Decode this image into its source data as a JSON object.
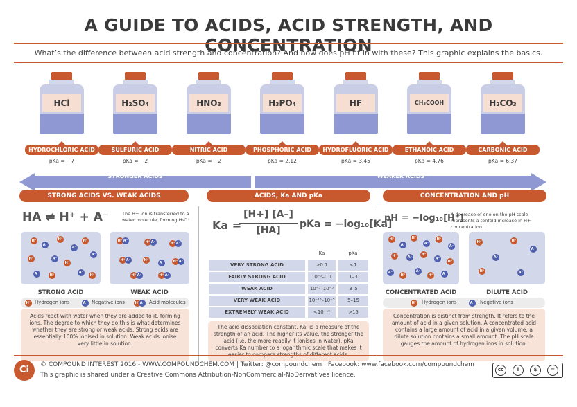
{
  "header": {
    "title": "A GUIDE TO ACIDS, ACID STRENGTH, AND CONCENTRATION",
    "subtitle": "What’s the difference between acid strength and concentration? And how does pH fit in with these? This graphic explains the basics."
  },
  "acids": [
    {
      "formula": "HCl",
      "name": "HYDROCHLORIC ACID",
      "pka": "pKa = −7"
    },
    {
      "formula": "H₂SO₄",
      "name": "SULFURIC ACID",
      "pka": "pKa = −2"
    },
    {
      "formula": "HNO₃",
      "name": "NITRIC ACID",
      "pka": "pKa = −2"
    },
    {
      "formula": "H₃PO₄",
      "name": "PHOSPHORIC ACID",
      "pka": "pKa = 2.12"
    },
    {
      "formula": "HF",
      "name": "HYDROFLUORIC ACID",
      "pka": "pKa = 3.45"
    },
    {
      "formula": "CH₃COOH",
      "name": "ETHANOIC ACID",
      "pka": "pKa = 4.76"
    },
    {
      "formula": "H₂CO₃",
      "name": "CARBONIC ACID",
      "pka": "pKa = 6.37"
    }
  ],
  "arrows": {
    "stronger": "STRONGER ACIDS",
    "weaker": "WEAKER ACIDS"
  },
  "panel_strong_weak": {
    "heading": "STRONG ACIDS VS. WEAK ACIDS",
    "equation": "HA ⇌ H⁺ + A⁻",
    "note": "The H+ ion is transferred to a water molecule, forming H₃O⁺",
    "strong_label": "STRONG ACID",
    "weak_label": "WEAK ACID",
    "legend": {
      "h": "Hydrogen ions",
      "a": "Negative ions",
      "m": "Acid molecules",
      "h_sym": "H⁺",
      "a_sym": "A⁻"
    },
    "description": "Acids react with water when they are added to it, forming ions. The degree to which they do this is what determines whether they are strong or weak acids. Strong acids are essentially 100% ionised in solution. Weak acids ionise very little in solution."
  },
  "panel_ka": {
    "heading": "ACIDS, Ka AND pKa",
    "ka_lhs": "Ka =",
    "ka_num": "[H+] [A–]",
    "ka_den": "[HA]",
    "pka_eq": "pKa = −log₁₀[Ka]",
    "col_ka": "Ka",
    "col_pka": "pKa",
    "rows": [
      {
        "label": "VERY STRONG ACID",
        "ka": ">0.1",
        "pka": "<1"
      },
      {
        "label": "FAIRLY STRONG ACID",
        "ka": "10⁻³–0.1",
        "pka": "1–3"
      },
      {
        "label": "WEAK ACID",
        "ka": "10⁻⁵–10⁻³",
        "pka": "3–5"
      },
      {
        "label": "VERY WEAK ACID",
        "ka": "10⁻¹⁵–10⁻⁵",
        "pka": "5–15"
      },
      {
        "label": "EXTREMELY WEAK ACID",
        "ka": "<10⁻¹⁵",
        "pka": ">15"
      }
    ],
    "description": "The acid dissociation constant, Ka, is a measure of the strength of an acid. The higher its value, the stronger the acid (i.e. the more readily it ionises in water). pKa converts Ka number to a logarithmic scale that makes it easier to compare strengths of different acids."
  },
  "panel_ph": {
    "heading": "CONCENTRATION AND pH",
    "equation": "pH = −log₁₀[H⁺]",
    "note": "A decrease of one on the pH scale represents a tenfold increase in H+ concentration.",
    "conc_label": "CONCENTRATED ACID",
    "dilute_label": "DILUTE ACID",
    "legend_h": "Hydrogen ions",
    "legend_a": "Negative ions",
    "description": "Concentration is distinct from strength. It refers to the amount of acid in a given solution. A concentrated acid contains a large amount of acid in a given volume; a dilute solution contains a small amount. The pH scale gauges the amount of hydrogen ions in solution."
  },
  "footer": {
    "logo": "Ci",
    "line1": "© COMPOUND INTEREST 2016 - WWW.COMPOUNDCHEM.COM | Twitter: @compoundchem | Facebook: www.facebook.com/compoundchem",
    "line2": "This graphic is shared under a Creative Commons Attribution-NonCommercial-NoDerivatives licence.",
    "cc": {
      "c1": "cc",
      "c2": "i",
      "c3": "$",
      "c4": "=",
      "by": "BY",
      "nc": "NC",
      "nd": "ND"
    }
  },
  "colors": {
    "accent": "#c8582e",
    "blue": "#8f98d2",
    "light_blue": "#d3d7ea",
    "peach": "#f8e3d8"
  }
}
